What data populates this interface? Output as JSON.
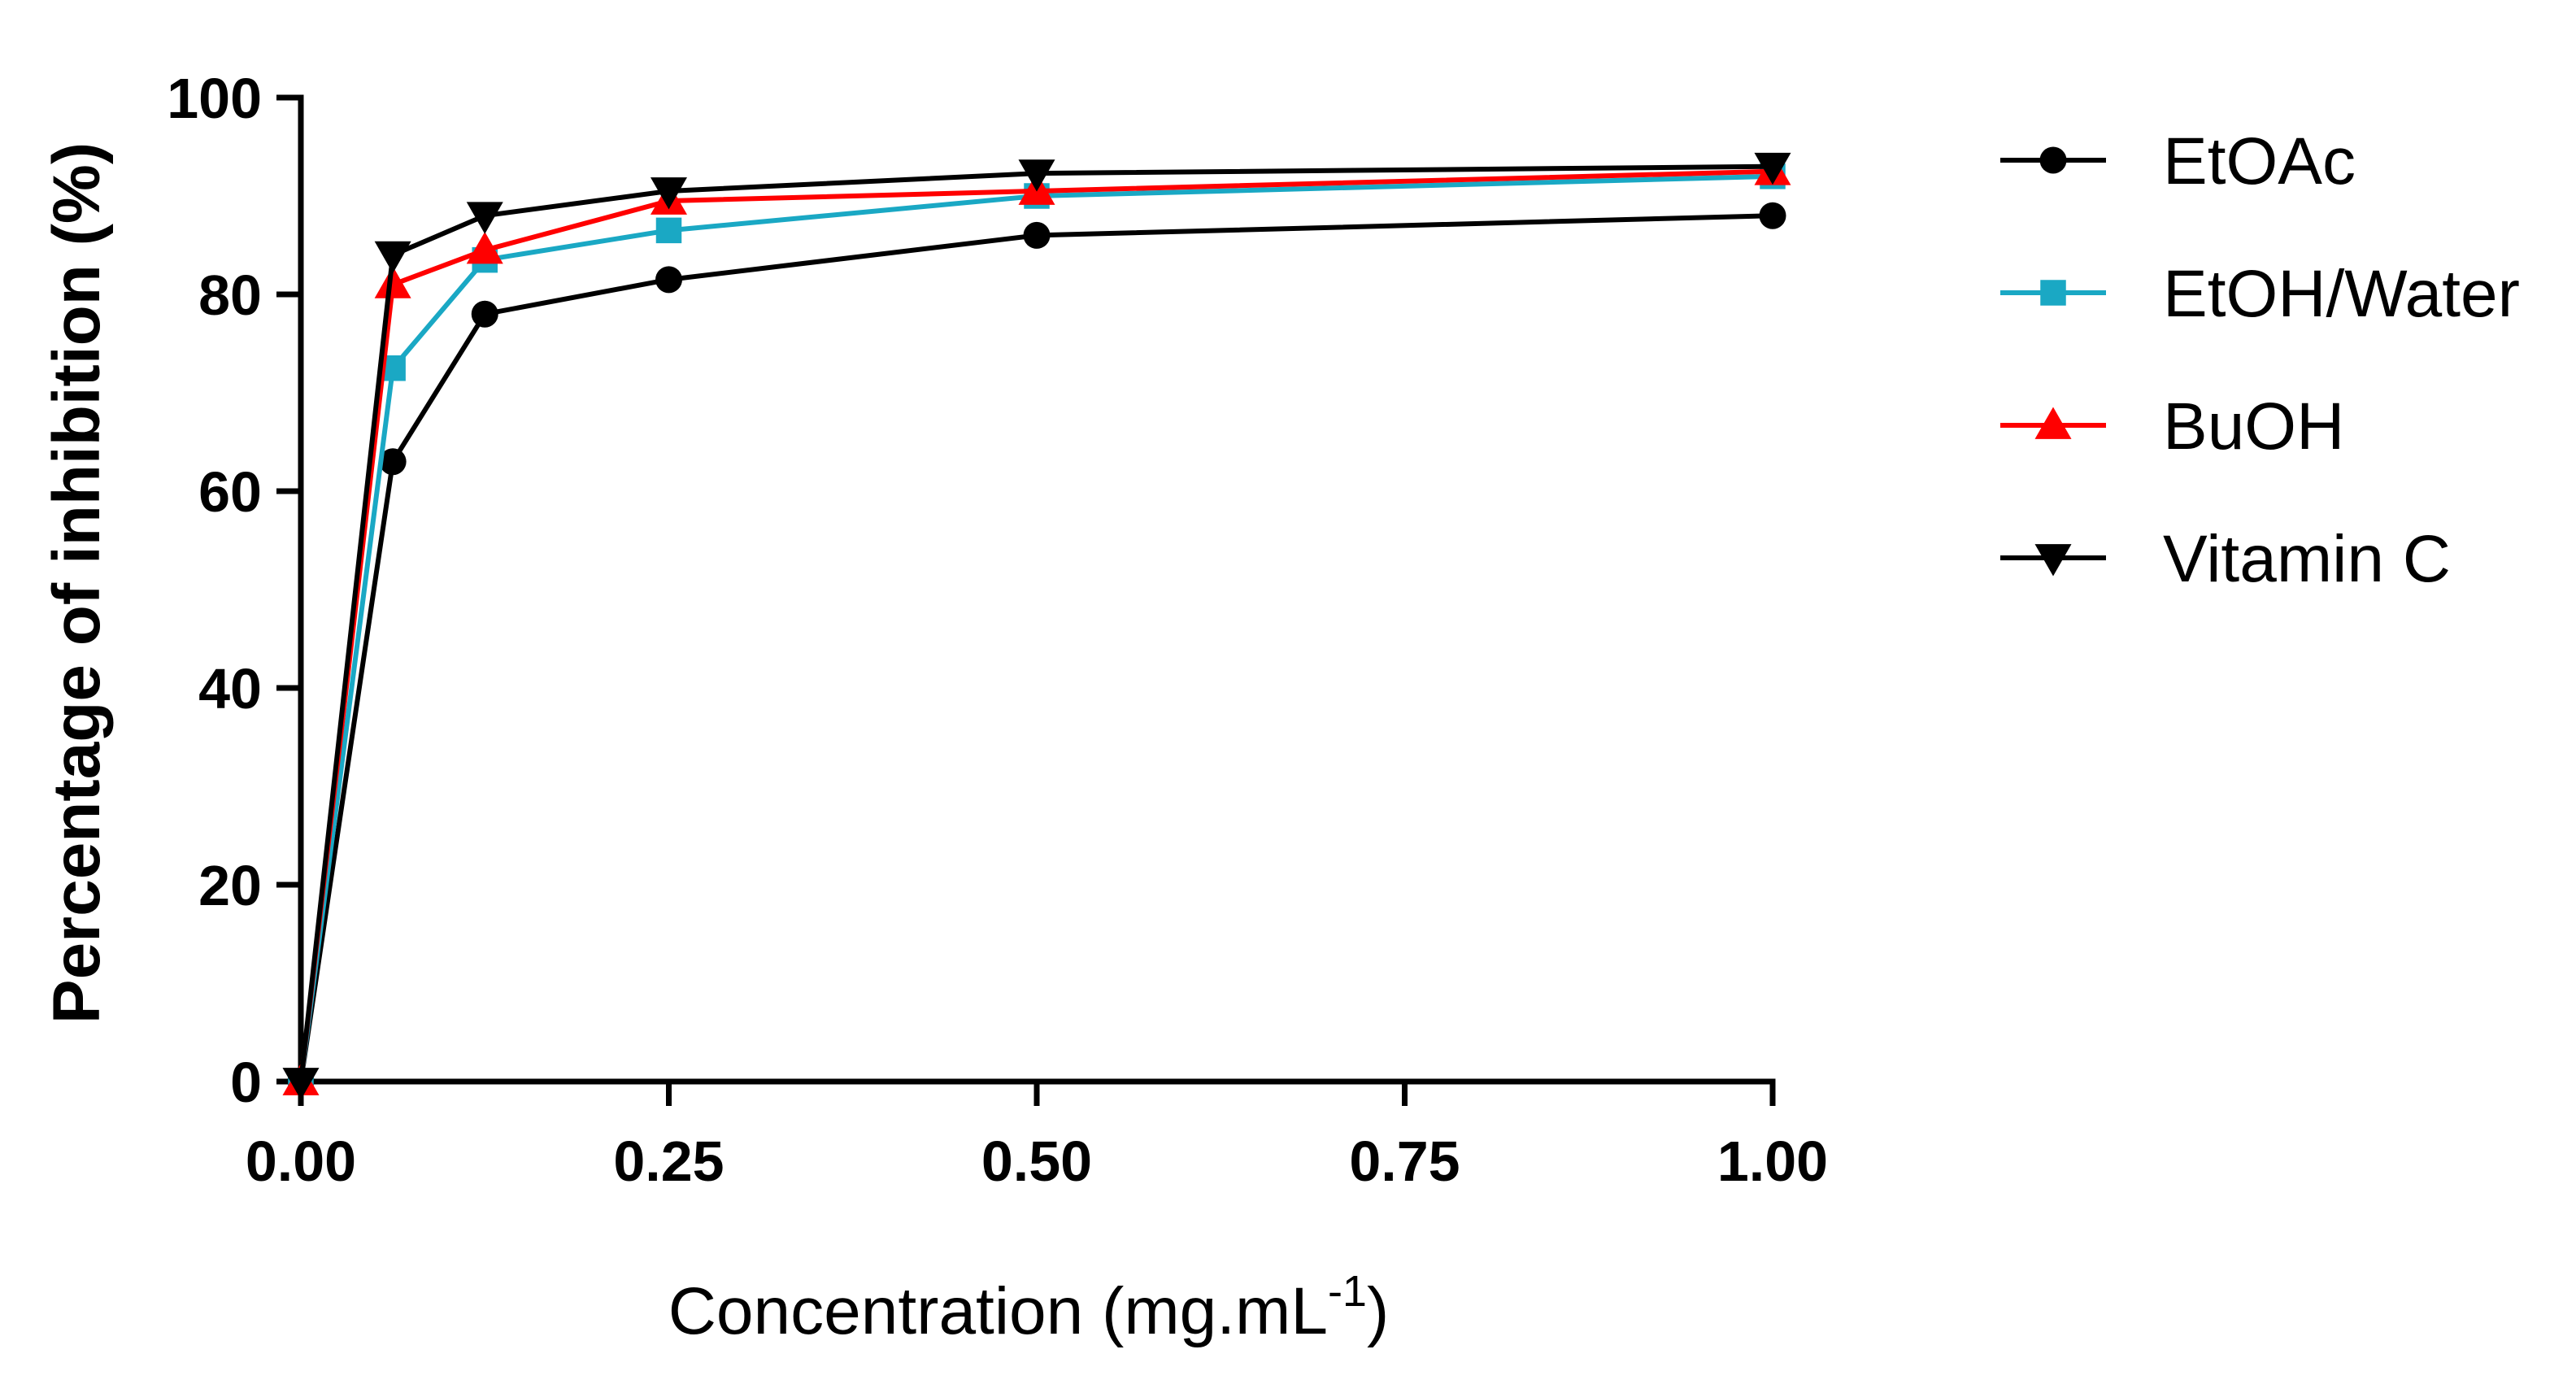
{
  "chart_data": {
    "type": "line",
    "title": "",
    "xlabel": "Concentration (mg.mL",
    "xlabel_superscript": "-1",
    "xlabel_suffix": ")",
    "ylabel": "Percentage of inhibition (%)",
    "xlim": [
      0,
      1
    ],
    "ylim": [
      0,
      100
    ],
    "x_ticks": [
      0,
      0.25,
      0.5,
      0.75,
      1.0
    ],
    "x_tick_labels": [
      "0.00",
      "0.25",
      "0.50",
      "0.75",
      "1.00"
    ],
    "y_ticks": [
      0,
      20,
      40,
      60,
      80,
      100
    ],
    "y_tick_labels": [
      "0",
      "20",
      "40",
      "60",
      "80",
      "100"
    ],
    "grid": false,
    "legend_position": "right",
    "x": [
      0,
      0.0625,
      0.125,
      0.25,
      0.5,
      1.0
    ],
    "series": [
      {
        "name": "EtOAc",
        "marker": "circle",
        "color": "#000000",
        "values": [
          0,
          63,
          78,
          81.5,
          86,
          88
        ]
      },
      {
        "name": "EtOH/Water",
        "marker": "square",
        "color": "#1aa8c4",
        "values": [
          0,
          72.5,
          83.5,
          86.5,
          90,
          92
        ]
      },
      {
        "name": "BuOH",
        "marker": "triangle-up",
        "color": "#ff0000",
        "values": [
          0,
          81,
          84.5,
          89.5,
          90.5,
          92.5
        ]
      },
      {
        "name": "Vitamin C",
        "marker": "triangle-down",
        "color": "#000000",
        "values": [
          0,
          84,
          88,
          90.5,
          92.3,
          93
        ]
      }
    ]
  }
}
